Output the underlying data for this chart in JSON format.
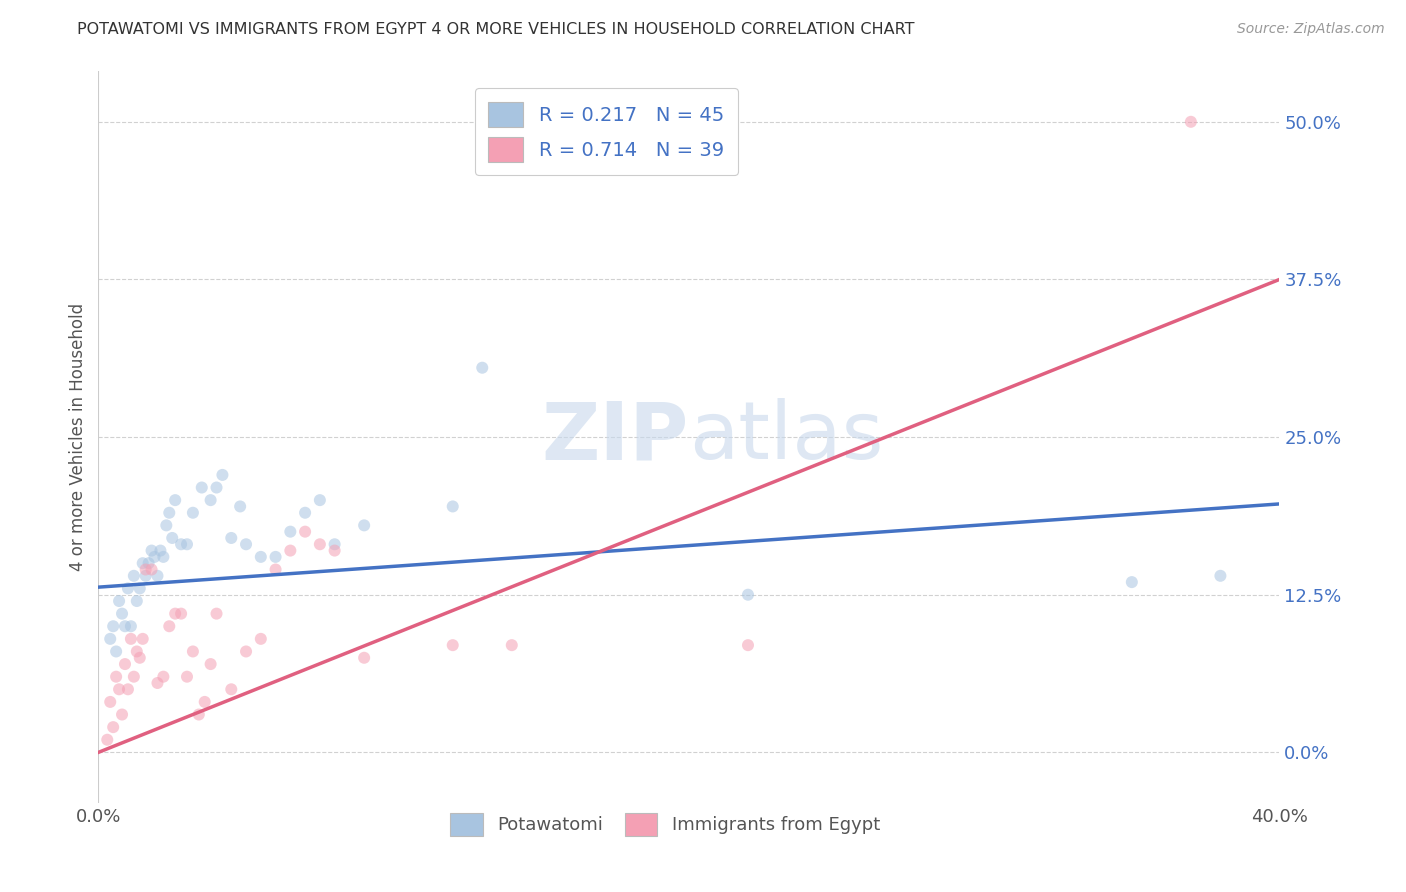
{
  "title": "POTAWATOMI VS IMMIGRANTS FROM EGYPT 4 OR MORE VEHICLES IN HOUSEHOLD CORRELATION CHART",
  "source": "Source: ZipAtlas.com",
  "ylabel": "4 or more Vehicles in Household",
  "xlim": [
    0.0,
    0.4
  ],
  "ylim": [
    -0.04,
    0.54
  ],
  "yticks": [
    0.0,
    0.125,
    0.25,
    0.375,
    0.5
  ],
  "ytick_labels": [
    "0.0%",
    "12.5%",
    "25.0%",
    "37.5%",
    "50.0%"
  ],
  "xticks": [
    0.0,
    0.05,
    0.1,
    0.15,
    0.2,
    0.25,
    0.3,
    0.35,
    0.4
  ],
  "xtick_labels": [
    "0.0%",
    "",
    "",
    "",
    "",
    "",
    "",
    "",
    "40.0%"
  ],
  "blue_color": "#a8c4e0",
  "blue_line_color": "#4472c4",
  "pink_color": "#f4a0b4",
  "pink_line_color": "#e06080",
  "legend_R_blue": "R = 0.217",
  "legend_N_blue": "N = 45",
  "legend_R_pink": "R = 0.714",
  "legend_N_pink": "N = 39",
  "blue_scatter_x": [
    0.004,
    0.005,
    0.006,
    0.007,
    0.008,
    0.009,
    0.01,
    0.011,
    0.012,
    0.013,
    0.014,
    0.015,
    0.016,
    0.017,
    0.018,
    0.019,
    0.02,
    0.021,
    0.022,
    0.023,
    0.024,
    0.025,
    0.026,
    0.028,
    0.03,
    0.032,
    0.035,
    0.038,
    0.04,
    0.042,
    0.045,
    0.048,
    0.05,
    0.055,
    0.06,
    0.065,
    0.07,
    0.075,
    0.08,
    0.09,
    0.12,
    0.13,
    0.22,
    0.35,
    0.38
  ],
  "blue_scatter_y": [
    0.09,
    0.1,
    0.08,
    0.12,
    0.11,
    0.1,
    0.13,
    0.1,
    0.14,
    0.12,
    0.13,
    0.15,
    0.14,
    0.15,
    0.16,
    0.155,
    0.14,
    0.16,
    0.155,
    0.18,
    0.19,
    0.17,
    0.2,
    0.165,
    0.165,
    0.19,
    0.21,
    0.2,
    0.21,
    0.22,
    0.17,
    0.195,
    0.165,
    0.155,
    0.155,
    0.175,
    0.19,
    0.2,
    0.165,
    0.18,
    0.195,
    0.305,
    0.125,
    0.135,
    0.14
  ],
  "pink_scatter_x": [
    0.003,
    0.004,
    0.005,
    0.006,
    0.007,
    0.008,
    0.009,
    0.01,
    0.011,
    0.012,
    0.013,
    0.014,
    0.015,
    0.016,
    0.018,
    0.02,
    0.022,
    0.024,
    0.026,
    0.028,
    0.03,
    0.032,
    0.034,
    0.036,
    0.038,
    0.04,
    0.045,
    0.05,
    0.055,
    0.06,
    0.065,
    0.07,
    0.075,
    0.08,
    0.09,
    0.12,
    0.14,
    0.22,
    0.37
  ],
  "pink_scatter_y": [
    0.01,
    0.04,
    0.02,
    0.06,
    0.05,
    0.03,
    0.07,
    0.05,
    0.09,
    0.06,
    0.08,
    0.075,
    0.09,
    0.145,
    0.145,
    0.055,
    0.06,
    0.1,
    0.11,
    0.11,
    0.06,
    0.08,
    0.03,
    0.04,
    0.07,
    0.11,
    0.05,
    0.08,
    0.09,
    0.145,
    0.16,
    0.175,
    0.165,
    0.16,
    0.075,
    0.085,
    0.085,
    0.085,
    0.5
  ],
  "blue_line_x": [
    0.0,
    0.4
  ],
  "blue_line_y": [
    0.131,
    0.197
  ],
  "pink_line_x": [
    0.0,
    0.4
  ],
  "pink_line_y": [
    0.0,
    0.375
  ],
  "watermark_zip": "ZIP",
  "watermark_atlas": "atlas",
  "background_color": "#ffffff",
  "grid_color": "#cccccc",
  "title_color": "#333333",
  "axis_label_color": "#555555",
  "marker_size": 75,
  "marker_alpha": 0.55,
  "bottom_legend_labels": [
    "Potawatomi",
    "Immigrants from Egypt"
  ]
}
